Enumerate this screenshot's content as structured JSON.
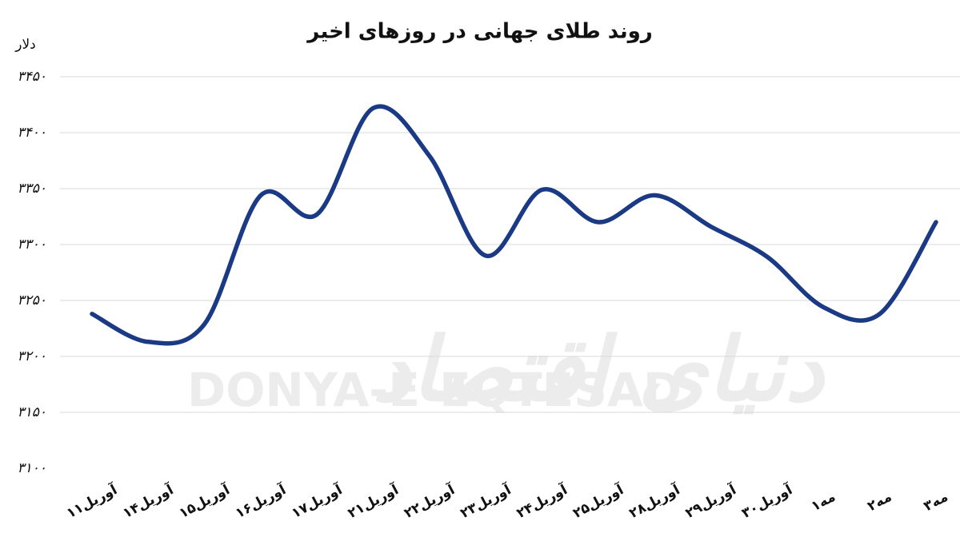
{
  "chart_data": {
    "type": "line",
    "title": "روند طلای جهانی در روزهای اخیر",
    "y_label": "دلار",
    "watermark": "DONYA-E-EQTESAD",
    "watermark_fa": "دنیای اقتصاد",
    "categories": [
      "۱۱آوریل",
      "۱۴آوریل",
      "۱۵آوریل",
      "۱۶آوریل",
      "۱۷آوریل",
      "۲۱آوریل",
      "۲۲آوریل",
      "۲۳آوریل",
      "۲۴آوریل",
      "۲۵آوریل",
      "۲۸آوریل",
      "۲۹آوریل",
      "۳۰آوریل",
      "۱مه",
      "۲مه",
      "۳مه"
    ],
    "values": [
      3238,
      3213,
      3229,
      3344,
      3327,
      3422,
      3379,
      3290,
      3349,
      3320,
      3344,
      3316,
      3289,
      3244,
      3238,
      3320
    ],
    "color": "#1b3a85",
    "ylim": [
      3100,
      3450
    ],
    "yticks": [
      {
        "value": 3100,
        "label": "۳۱۰۰"
      },
      {
        "value": 3150,
        "label": "۳۱۵۰"
      },
      {
        "value": 3200,
        "label": "۳۲۰۰"
      },
      {
        "value": 3250,
        "label": "۳۲۵۰"
      },
      {
        "value": 3300,
        "label": "۳۳۰۰"
      },
      {
        "value": 3350,
        "label": "۳۳۵۰"
      },
      {
        "value": 3400,
        "label": "۳۴۰۰"
      },
      {
        "value": 3450,
        "label": "۳۴۵۰"
      }
    ],
    "grid": true
  }
}
